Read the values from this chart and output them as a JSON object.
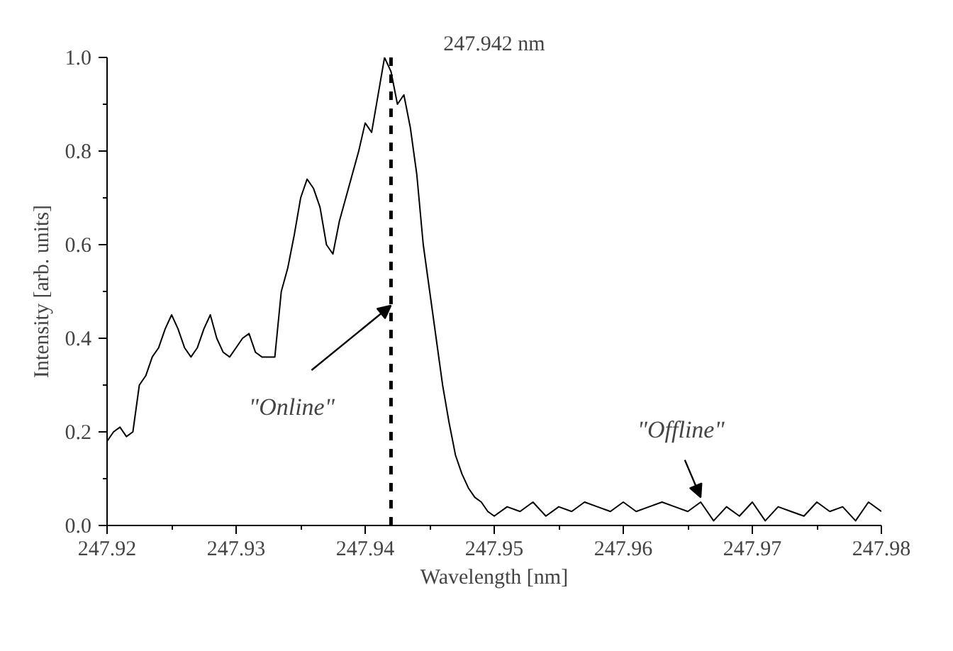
{
  "chart_data": {
    "type": "line",
    "xlabel": "Wavelength [nm]",
    "ylabel": "Intensity [arb. units]",
    "xlim": [
      247.92,
      247.98
    ],
    "ylim": [
      0,
      1.0
    ],
    "xticks": [
      247.92,
      247.93,
      247.94,
      247.95,
      247.96,
      247.97,
      247.98
    ],
    "yticks": [
      {
        "value": 0,
        "label": "0.0"
      },
      0.2,
      0.4,
      0.6,
      0.8,
      {
        "value": 1.0,
        "label": "1.0"
      }
    ],
    "grid": false,
    "marker": "none",
    "line_style": "solid",
    "series": [
      {
        "color": "#000000",
        "x": [
          247.92,
          247.9205,
          247.921,
          247.9215,
          247.922,
          247.9225,
          247.923,
          247.9235,
          247.924,
          247.9245,
          247.925,
          247.9255,
          247.926,
          247.9265,
          247.927,
          247.9275,
          247.928,
          247.9285,
          247.929,
          247.9295,
          247.93,
          247.9305,
          247.931,
          247.9315,
          247.932,
          247.9325,
          247.933,
          247.9335,
          247.934,
          247.9345,
          247.935,
          247.9355,
          247.936,
          247.9365,
          247.937,
          247.9375,
          247.938,
          247.9385,
          247.939,
          247.9395,
          247.94,
          247.9405,
          247.941,
          247.9415,
          247.942,
          247.9425,
          247.943,
          247.9435,
          247.944,
          247.9445,
          247.945,
          247.9455,
          247.946,
          247.9465,
          247.947,
          247.9475,
          247.948,
          247.9485,
          247.949,
          247.9495,
          247.95,
          247.951,
          247.952,
          247.953,
          247.954,
          247.955,
          247.956,
          247.957,
          247.958,
          247.959,
          247.96,
          247.961,
          247.962,
          247.963,
          247.964,
          247.965,
          247.966,
          247.967,
          247.968,
          247.969,
          247.97,
          247.971,
          247.972,
          247.973,
          247.974,
          247.975,
          247.976,
          247.977,
          247.978,
          247.979,
          247.98
        ],
        "values": [
          0.18,
          0.2,
          0.21,
          0.19,
          0.2,
          0.3,
          0.32,
          0.36,
          0.38,
          0.42,
          0.45,
          0.42,
          0.38,
          0.36,
          0.38,
          0.42,
          0.45,
          0.4,
          0.37,
          0.36,
          0.38,
          0.4,
          0.41,
          0.37,
          0.36,
          0.36,
          0.36,
          0.5,
          0.55,
          0.62,
          0.7,
          0.74,
          0.72,
          0.68,
          0.6,
          0.58,
          0.65,
          0.7,
          0.75,
          0.8,
          0.86,
          0.84,
          0.92,
          1.0,
          0.97,
          0.9,
          0.92,
          0.85,
          0.75,
          0.6,
          0.5,
          0.4,
          0.3,
          0.22,
          0.15,
          0.11,
          0.08,
          0.06,
          0.05,
          0.03,
          0.02,
          0.04,
          0.03,
          0.05,
          0.02,
          0.04,
          0.03,
          0.05,
          0.04,
          0.03,
          0.05,
          0.03,
          0.04,
          0.05,
          0.04,
          0.03,
          0.05,
          0.01,
          0.04,
          0.02,
          0.05,
          0.01,
          0.04,
          0.03,
          0.02,
          0.05,
          0.03,
          0.04,
          0.01,
          0.05,
          0.03
        ]
      }
    ],
    "ref_lines": [
      {
        "axis": "x",
        "value": 247.942,
        "label": "247.942 nm",
        "line_style": "dashed",
        "color": "#000000"
      }
    ],
    "annotations": [
      {
        "text": "\"Online\"",
        "x": 247.942,
        "y": 0.47
      },
      {
        "text": "\"Offline\"",
        "x": 247.966,
        "y": 0.06
      }
    ]
  }
}
